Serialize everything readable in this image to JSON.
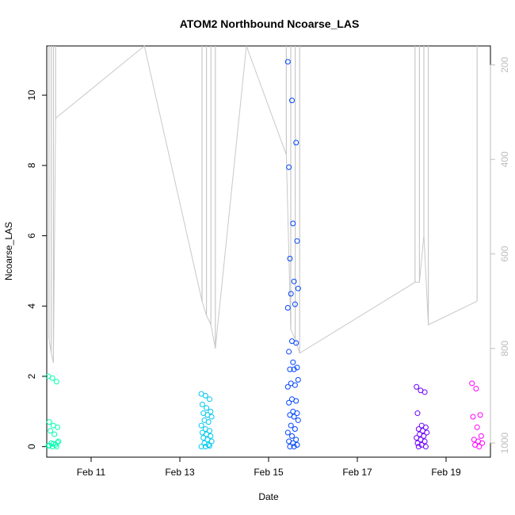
{
  "chart_data": {
    "type": "scatter",
    "title": "ATOM2 Northbound Ncoarse_LAS",
    "xlabel": "Date",
    "ylabel": "Ncoarse_LAS",
    "x_tick_labels": [
      "Feb 11",
      "Feb 13",
      "Feb 15",
      "Feb 17",
      "Feb 19"
    ],
    "x_tick_days": [
      11,
      13,
      15,
      17,
      19
    ],
    "xlim_days": [
      10.0,
      20.0
    ],
    "ylim": [
      -0.3,
      11.4
    ],
    "y_ticks": [
      0,
      2,
      4,
      6,
      8,
      10
    ],
    "right_axis": {
      "ticks": [
        200,
        400,
        600,
        800,
        1000
      ],
      "lim": [
        1030,
        160
      ],
      "color": "#bdbdbd",
      "note": "secondary series (gray line) on inverted axis"
    },
    "grid": false,
    "legend": "none",
    "colors": {
      "feb10": "#00ffb0",
      "feb13": "#00c8f0",
      "feb15": "#0044ff",
      "feb18": "#6a00ff",
      "feb19": "#ff00ff",
      "secondary": "#c8c8c8"
    },
    "points": [
      {
        "x": 10.15,
        "ys": [
          2.0,
          1.95,
          1.85,
          0.7,
          0.6,
          0.55,
          0.45,
          0.35,
          0.15,
          0.1,
          0.05,
          0.02,
          0.0,
          0.0,
          0.03,
          0.08,
          0.12
        ],
        "color": "feb10"
      },
      {
        "x": 13.6,
        "ys": [
          1.5,
          1.45,
          1.35,
          1.2,
          1.1,
          1.0,
          0.95,
          0.9,
          0.85,
          0.75,
          0.7,
          0.6,
          0.5,
          0.45,
          0.4,
          0.35,
          0.3,
          0.25,
          0.2,
          0.15,
          0.1,
          0.05,
          0.0,
          0.0,
          0.02
        ],
        "color": "feb13"
      },
      {
        "x": 15.55,
        "ys": [
          10.95,
          9.85,
          8.65,
          7.95,
          6.35,
          5.85,
          5.35,
          4.7,
          4.5,
          4.35,
          4.05,
          3.95,
          3.0,
          2.95,
          2.7,
          2.4,
          2.25,
          2.2,
          2.2,
          1.9,
          1.8,
          1.75,
          1.7,
          1.35,
          1.3,
          1.25,
          1.0,
          0.95,
          0.9,
          0.85,
          0.75,
          0.6,
          0.5,
          0.4,
          0.3,
          0.2,
          0.15,
          0.1,
          0.05,
          0.0,
          0.0
        ],
        "color": "feb15"
      },
      {
        "x": 18.45,
        "ys": [
          1.7,
          1.6,
          1.55,
          0.95,
          0.6,
          0.55,
          0.5,
          0.45,
          0.4,
          0.35,
          0.3,
          0.25,
          0.2,
          0.15,
          0.1,
          0.05,
          0.0,
          0.0
        ],
        "color": "feb18"
      },
      {
        "x": 19.7,
        "ys": [
          1.8,
          1.65,
          0.9,
          0.85,
          0.55,
          0.3,
          0.2,
          0.15,
          0.1,
          0.05,
          0.0
        ],
        "color": "feb19"
      }
    ],
    "secondary_line_days": [
      10.05,
      10.1,
      10.15,
      10.2,
      12.2,
      13.5,
      13.6,
      13.7,
      13.8,
      14.5,
      15.4,
      15.5,
      15.6,
      15.7,
      18.3,
      18.4,
      18.5,
      18.6,
      19.7
    ],
    "secondary_line_vals": [
      780,
      810,
      830,
      313,
      160,
      700,
      730,
      750,
      800,
      160,
      390,
      760,
      780,
      810,
      660,
      660,
      560,
      750,
      700
    ]
  }
}
